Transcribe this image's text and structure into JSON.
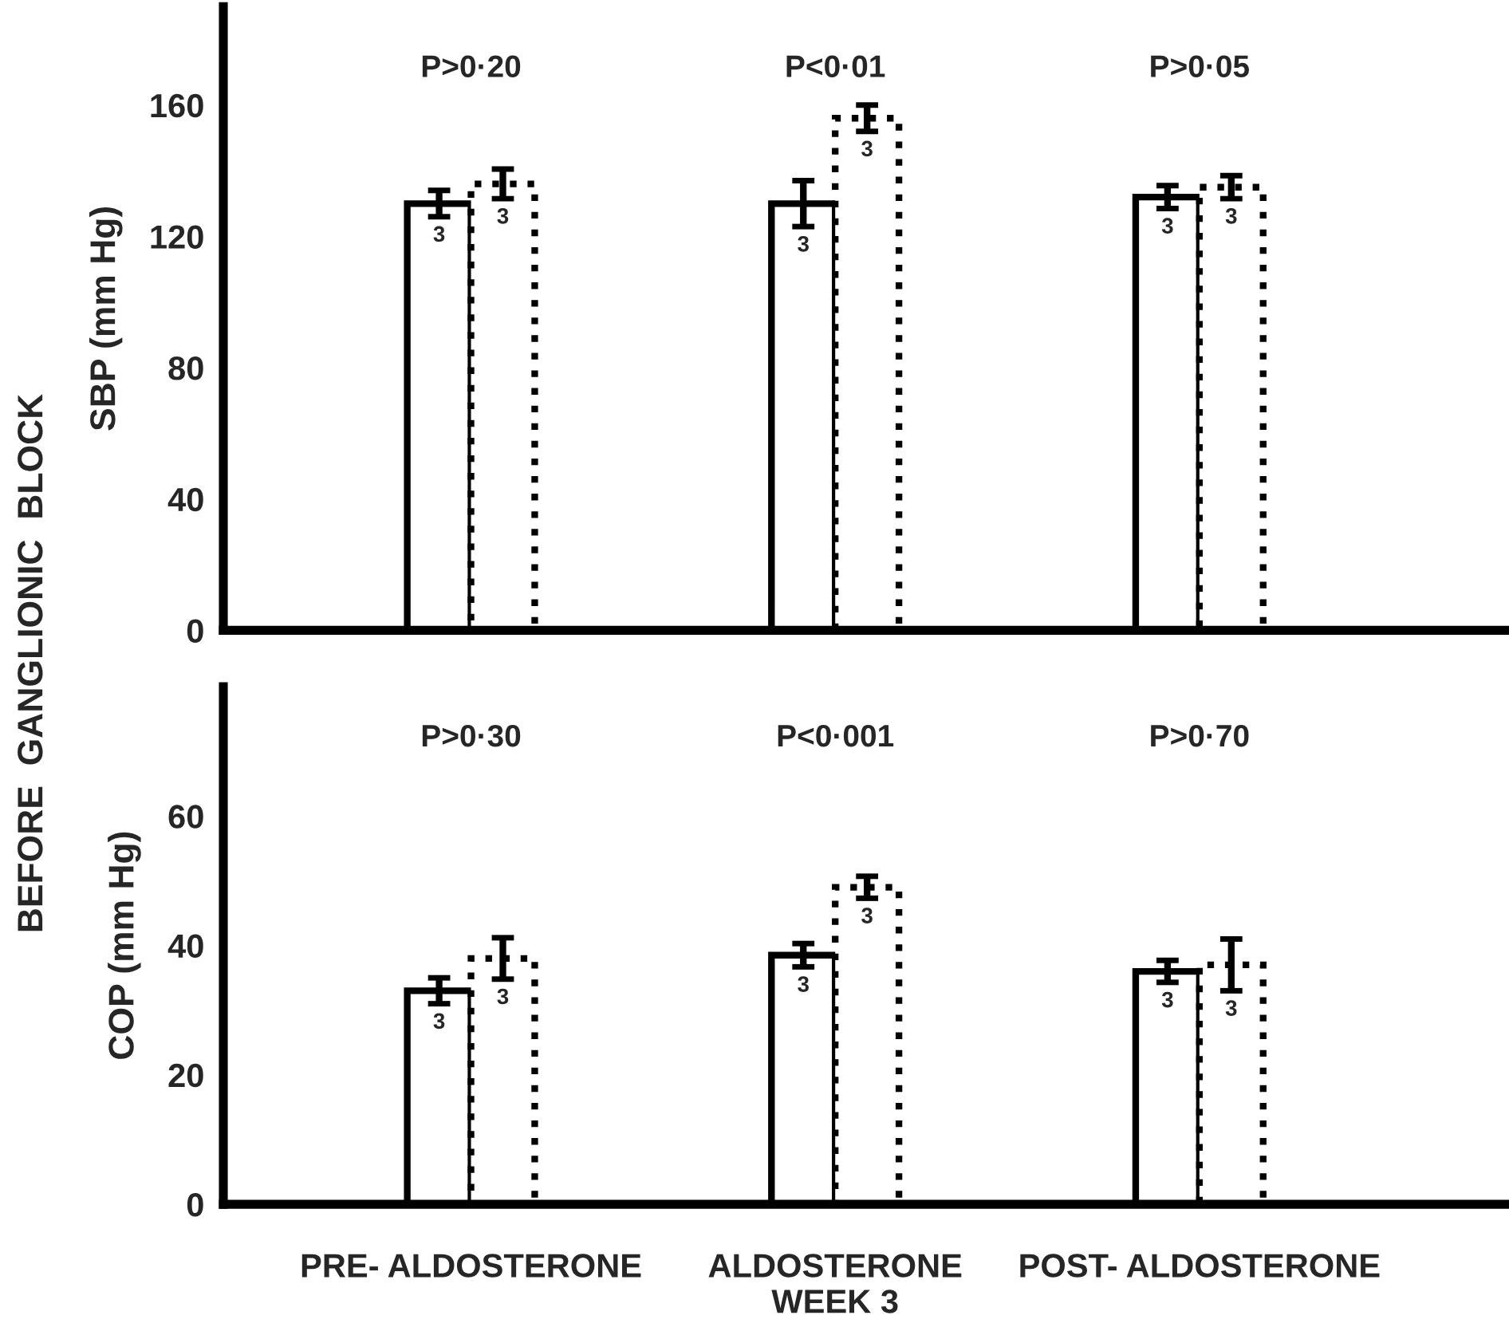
{
  "chart_data": [
    {
      "type": "bar",
      "ylabel": "SBP (mm Hg)",
      "categories": [
        "PRE- ALDOSTERONE",
        "ALDOSTERONE\nWEEK 3",
        "POST- ALDOSTERONE"
      ],
      "series": [
        {
          "color": "#000000",
          "line_style": "solid",
          "values": [
            130,
            130,
            132
          ],
          "errors": [
            4,
            7,
            3.5
          ]
        },
        {
          "color": "#000000",
          "line_style": "dotted",
          "values": [
            136,
            156,
            135
          ],
          "errors": [
            4.5,
            4,
            3.5
          ]
        }
      ],
      "ylim": [
        0,
        190
      ],
      "yticks": [
        0,
        40,
        80,
        120,
        160
      ],
      "tick_labels": "y",
      "annotations": [
        "BEFORE  GANGLIONIC  BLOCK",
        "P>0·20",
        "P<0·01",
        "P>0·05",
        {
          "text": "3",
          "x": "PRE- ALDOSTERONE",
          "y": 126
        },
        {
          "text": "3",
          "x": "ALDOSTERONE\nWEEK 3",
          "y": 123
        },
        {
          "text": "3",
          "x": "POST- ALDOSTERONE",
          "y": 128.5
        },
        {
          "text": "3",
          "x": "PRE- ALDOSTERONE",
          "y": 131.5
        },
        {
          "text": "3",
          "x": "ALDOSTERONE\nWEEK 3",
          "y": 152
        },
        {
          "text": "3",
          "x": "POST- ALDOSTERONE",
          "y": 131.5
        }
      ]
    },
    {
      "type": "bar",
      "ylabel": "COP (mm Hg)",
      "categories": [
        "PRE- ALDOSTERONE",
        "ALDOSTERONE\nWEEK 3",
        "POST- ALDOSTERONE"
      ],
      "series": [
        {
          "color": "#000000",
          "line_style": "solid",
          "values": [
            33,
            38.5,
            36
          ],
          "errors": [
            2,
            1.8,
            1.7
          ]
        },
        {
          "color": "#000000",
          "line_style": "dotted",
          "values": [
            38,
            49,
            37
          ],
          "errors": [
            3.2,
            1.7,
            4
          ]
        }
      ],
      "ylim": [
        0,
        80
      ],
      "yticks": [
        0,
        20,
        40,
        60
      ],
      "annotations": [
        "P>0·30",
        "P<0·001",
        "P>0·70",
        {
          "text": "3",
          "x": "PRE- ALDOSTERONE",
          "y": 31
        },
        {
          "text": "3",
          "x": "ALDOSTERONE\nWEEK 3",
          "y": 36.7
        },
        {
          "text": "3",
          "x": "POST- ALDOSTERONE",
          "y": 34.3
        },
        {
          "text": "3",
          "x": "PRE- ALDOSTERONE",
          "y": 34.8
        },
        {
          "text": "3",
          "x": "ALDOSTERONE\nWEEK 3",
          "y": 47.3
        },
        {
          "text": "3",
          "x": "POST- ALDOSTERONE",
          "y": 33
        }
      ]
    }
  ]
}
